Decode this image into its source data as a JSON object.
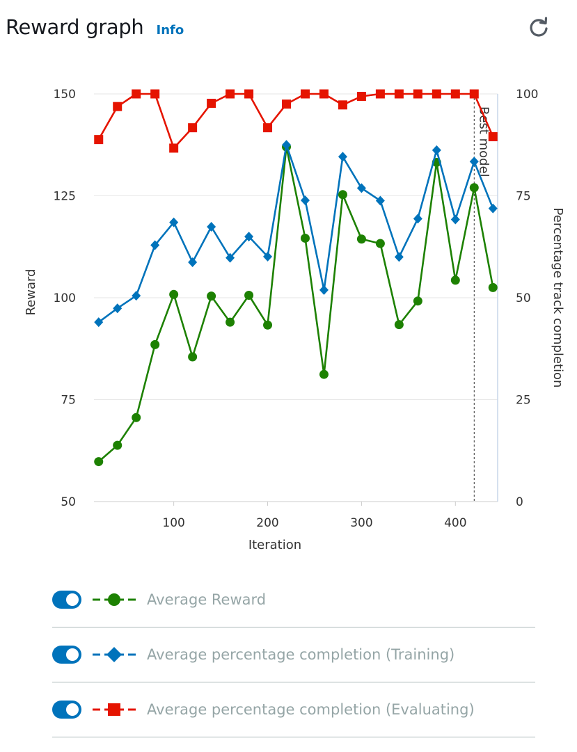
{
  "header": {
    "title": "Reward graph",
    "info_label": "Info",
    "refresh_icon": "refresh-icon"
  },
  "chart_data": {
    "type": "line",
    "x": [
      20,
      40,
      60,
      80,
      100,
      120,
      140,
      160,
      180,
      200,
      220,
      240,
      260,
      280,
      300,
      320,
      340,
      360,
      380,
      400,
      420,
      440
    ],
    "xlabel": "Iteration",
    "xlim": [
      15,
      445
    ],
    "xticks": [
      100,
      200,
      300,
      400
    ],
    "ylabel": "Reward",
    "ylim": [
      50,
      150
    ],
    "yticks": [
      50,
      75,
      100,
      125,
      150
    ],
    "y2label": "Percentage track completion",
    "y2lim": [
      0,
      100
    ],
    "y2ticks": [
      0,
      25,
      50,
      75,
      100
    ],
    "grid": true,
    "series": [
      {
        "name": "Average Reward",
        "axis": "left",
        "color": "#1d8102",
        "marker": "circle",
        "values": [
          59.8,
          63.8,
          70.6,
          88.5,
          100.8,
          85.5,
          100.4,
          94.0,
          100.6,
          93.3,
          137.0,
          114.6,
          81.2,
          125.3,
          114.4,
          113.3,
          93.4,
          99.2,
          133.2,
          104.3,
          127.0,
          102.5
        ]
      },
      {
        "name": "Average percentage completion (Training)",
        "axis": "right",
        "color": "#0073bb",
        "marker": "diamond",
        "values": [
          44.0,
          47.4,
          50.5,
          62.9,
          68.5,
          58.7,
          67.4,
          59.8,
          65.0,
          60.1,
          87.5,
          73.9,
          51.9,
          84.6,
          76.9,
          73.8,
          60.0,
          69.4,
          86.2,
          69.2,
          83.4,
          71.9
        ]
      },
      {
        "name": "Average percentage completion (Evaluating)",
        "axis": "right",
        "color": "#e51400",
        "marker": "square",
        "values": [
          88.8,
          96.9,
          100.0,
          100.0,
          86.7,
          91.7,
          97.7,
          100.0,
          100.0,
          91.7,
          97.5,
          100.0,
          100.0,
          97.3,
          99.4,
          100.0,
          100.0,
          100.0,
          100.0,
          100.0,
          100.0,
          89.5
        ]
      }
    ],
    "annotations": [
      {
        "type": "vertical-line",
        "x": 420,
        "label": "Best model"
      }
    ]
  },
  "legend": {
    "items": [
      {
        "label": "Average Reward",
        "enabled": true,
        "color": "#1d8102",
        "marker": "circle"
      },
      {
        "label": "Average percentage completion (Training)",
        "enabled": true,
        "color": "#0073bb",
        "marker": "diamond"
      },
      {
        "label": "Average percentage completion (Evaluating)",
        "enabled": true,
        "color": "#e51400",
        "marker": "square"
      }
    ]
  }
}
